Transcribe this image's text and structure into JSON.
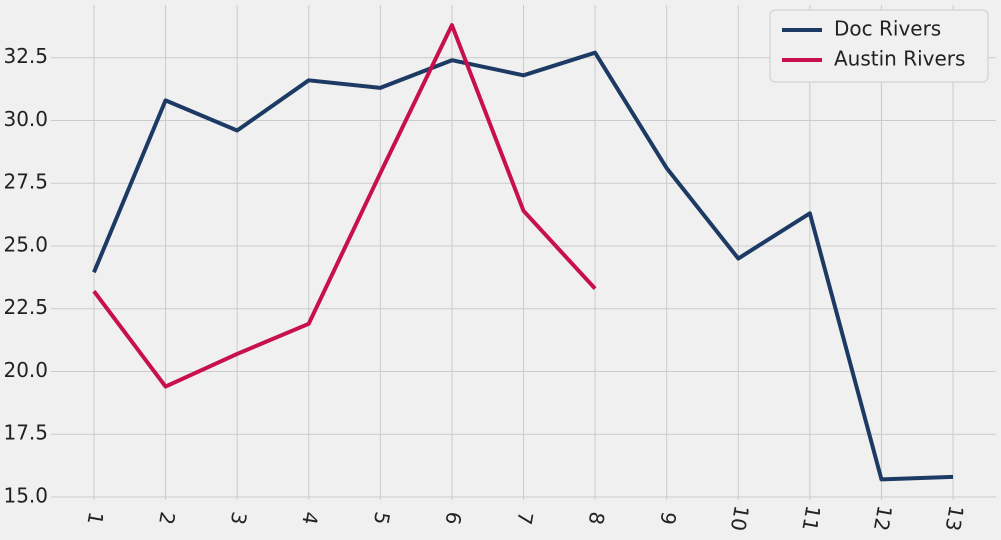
{
  "chart_data": {
    "type": "line",
    "x": [
      1,
      2,
      3,
      4,
      5,
      6,
      7,
      8,
      9,
      10,
      11,
      12,
      13
    ],
    "series": [
      {
        "name": "Doc Rivers",
        "color": "#1c3a63",
        "values": [
          23.95,
          30.8,
          29.6,
          31.6,
          31.3,
          32.4,
          31.8,
          32.7,
          28.1,
          24.5,
          26.3,
          15.7,
          15.8
        ]
      },
      {
        "name": "Austin Rivers",
        "color": "#c8104e",
        "values": [
          23.2,
          19.4,
          20.7,
          21.9,
          27.9,
          33.8,
          26.4,
          23.3,
          null,
          null,
          null,
          null,
          null
        ]
      }
    ],
    "xlim": [
      0.4,
      13.6
    ],
    "xticks": [
      1,
      2,
      3,
      4,
      5,
      6,
      7,
      8,
      9,
      10,
      11,
      12,
      13
    ],
    "ylim": [
      14.88,
      34.6
    ],
    "yticks": [
      {
        "value": 15.0,
        "label": "15.0"
      },
      17.5,
      {
        "value": 20.0,
        "label": "20.0"
      },
      22.5,
      {
        "value": 25.0,
        "label": "25.0"
      },
      27.5,
      {
        "value": 30.0,
        "label": "30.0"
      },
      32.5
    ],
    "grid": true,
    "legend": "upper right"
  }
}
